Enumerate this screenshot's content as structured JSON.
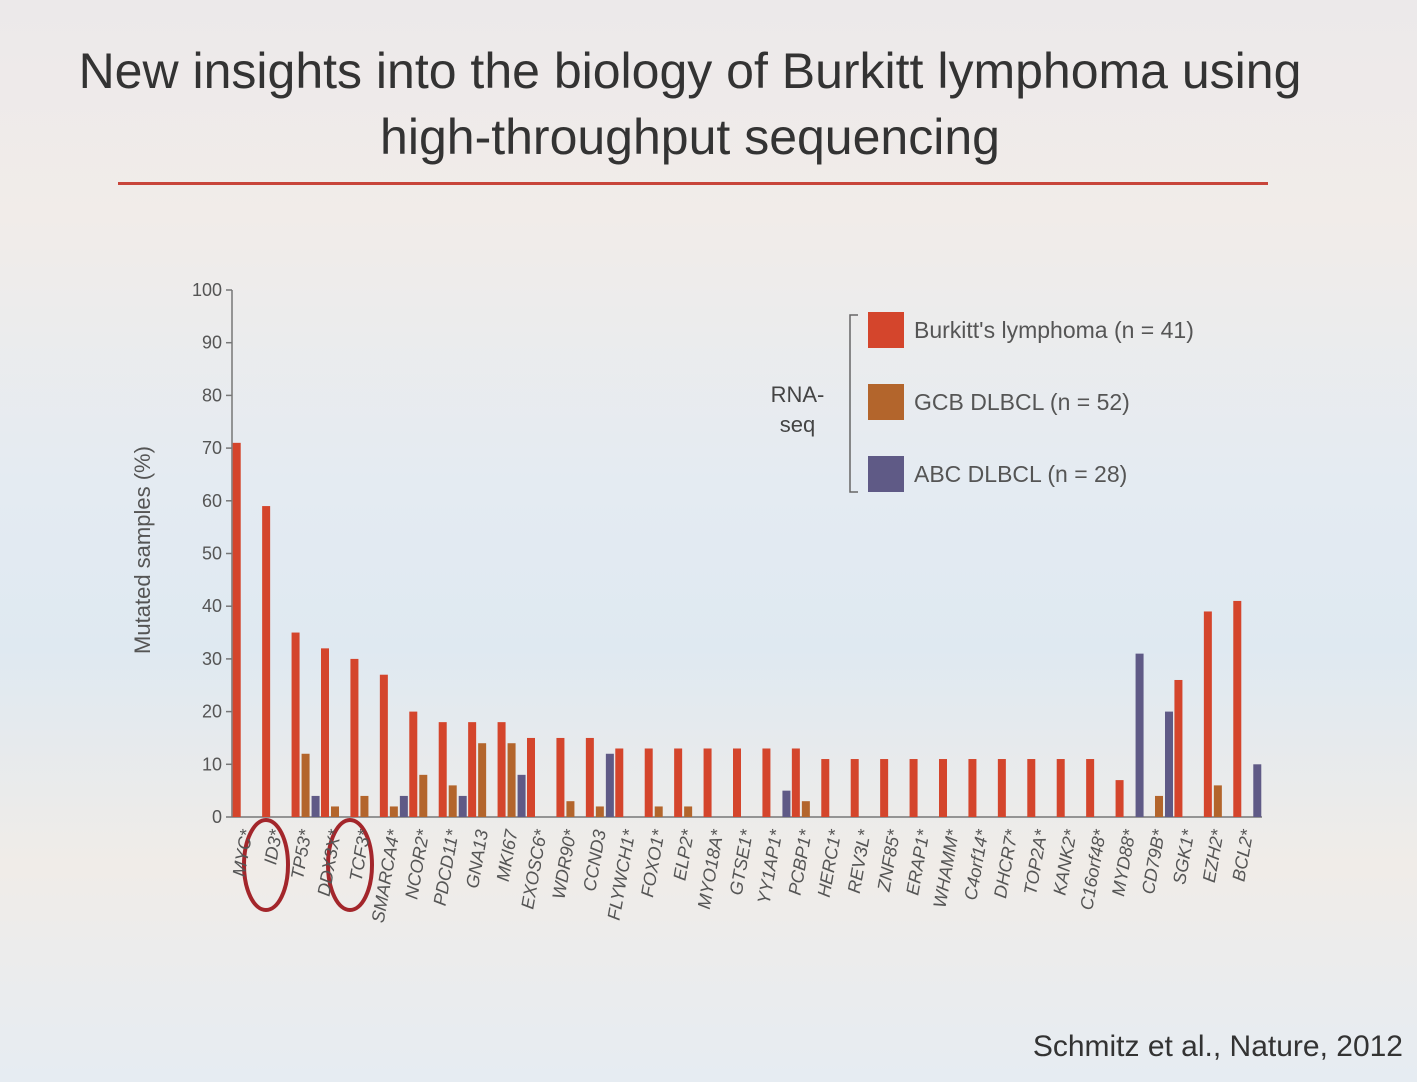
{
  "chart_data": {
    "type": "bar",
    "title": "New insights into the biology of Burkitt lymphoma using high-throughput sequencing",
    "ylabel": "Mutated samples (%)",
    "legend_title": "RNA-seq",
    "source": "Schmitz et al., Nature, 2012",
    "categories": [
      "MYC*",
      "ID3*",
      "TP53*",
      "DDX3X*",
      "TCF3*",
      "SMARCA4*",
      "NCOR2*",
      "PDCD11*",
      "GNA13",
      "MKI67",
      "EXOSC6*",
      "WDR90*",
      "CCND3",
      "FLYWCH1*",
      "FOXO1*",
      "ELP2*",
      "MYO18A*",
      "GTSE1*",
      "YY1AP1*",
      "PCBP1*",
      "HERC1*",
      "REV3L*",
      "ZNF85*",
      "ERAP1*",
      "WHAMM*",
      "C4orf14*",
      "DHCR7*",
      "TOP2A*",
      "KANK2*",
      "C16orf48*",
      "MYD88*",
      "CD79B*",
      "SGK1*",
      "EZH2*",
      "BCL2*"
    ],
    "series": [
      {
        "name": "Burkitt's lymphoma (n = 41)",
        "color": "#d4452c",
        "values": [
          71,
          59,
          35,
          32,
          30,
          27,
          20,
          18,
          18,
          18,
          15,
          15,
          15,
          13,
          13,
          13,
          13,
          13,
          13,
          13,
          11,
          11,
          11,
          11,
          11,
          11,
          11,
          11,
          11,
          11,
          7,
          0,
          26,
          39,
          41
        ]
      },
      {
        "name": "GCB DLBCL (n = 52)",
        "color": "#b3652c",
        "values": [
          0,
          0,
          12,
          2,
          4,
          2,
          8,
          6,
          14,
          14,
          0,
          3,
          2,
          0,
          2,
          2,
          0,
          0,
          0,
          3,
          0,
          0,
          0,
          0,
          0,
          0,
          0,
          0,
          0,
          0,
          0,
          4,
          0,
          6,
          0
        ]
      },
      {
        "name": "ABC DLBCL (n = 28)",
        "color": "#5f5a86",
        "values": [
          0,
          0,
          4,
          0,
          0,
          4,
          0,
          4,
          0,
          8,
          0,
          0,
          12,
          0,
          0,
          0,
          0,
          0,
          5,
          0,
          0,
          0,
          0,
          0,
          0,
          0,
          0,
          0,
          0,
          0,
          31,
          20,
          0,
          0,
          10
        ]
      }
    ],
    "ylim": [
      0,
      100
    ],
    "yticks": [
      0,
      10,
      20,
      30,
      40,
      50,
      60,
      70,
      80,
      90,
      100
    ],
    "grid": false
  }
}
